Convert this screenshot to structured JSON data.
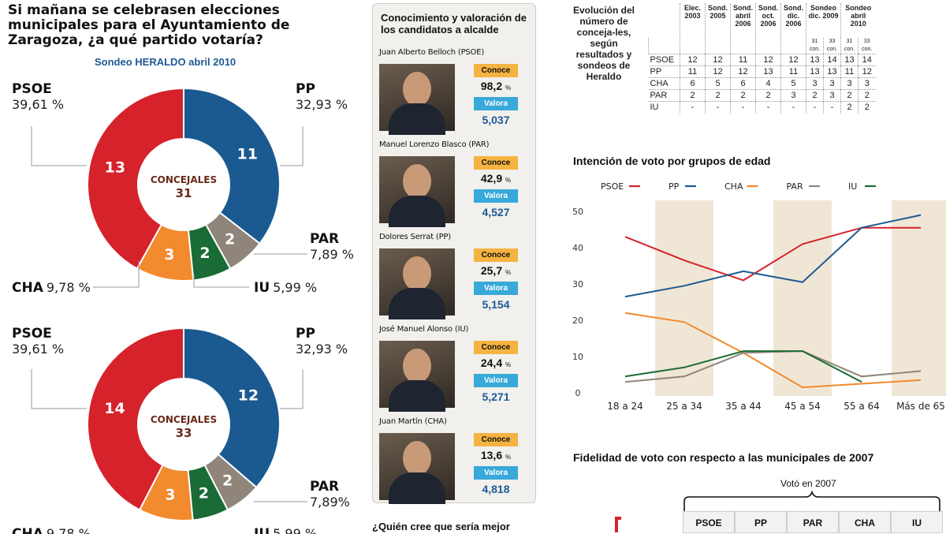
{
  "headline": "Si mañana se celebrasen elecciones municipales para el Ayuntamiento de Zaragoza, ¿a qué partido votaría?",
  "subtitle": "Sondeo HERALDO abril 2010",
  "colors": {
    "psoe": "#d6222b",
    "pp": "#1b5a91",
    "cha": "#f28a2e",
    "iu": "#1a6b35",
    "par": "#8f857a"
  },
  "chart_data": [
    {
      "type": "pie",
      "title": "",
      "center_label": "CONCEJALES",
      "total": "31",
      "slices": [
        {
          "party": "PSOE",
          "pct": "39,61 %",
          "seats": 13,
          "seats_label": "13"
        },
        {
          "party": "PP",
          "pct": "32,93 %",
          "seats": 11,
          "seats_label": "11"
        },
        {
          "party": "PAR",
          "pct": "7,89 %",
          "seats": 2,
          "seats_label": "2"
        },
        {
          "party": "IU",
          "pct": "5,99 %",
          "seats": 2,
          "seats_label": "2"
        },
        {
          "party": "CHA",
          "pct": "9,78 %",
          "seats": 3,
          "seats_label": "3"
        }
      ]
    },
    {
      "type": "pie",
      "title": "",
      "center_label": "CONCEJALES",
      "total": "33",
      "slices": [
        {
          "party": "PSOE",
          "pct": "39,61 %",
          "seats": 14,
          "seats_label": "14"
        },
        {
          "party": "PP",
          "pct": "32,93 %",
          "seats": 12,
          "seats_label": "12"
        },
        {
          "party": "PAR",
          "pct": "7,89%",
          "seats": 2,
          "seats_label": "2"
        },
        {
          "party": "IU",
          "pct": "5,99 %",
          "seats": 2,
          "seats_label": "2"
        },
        {
          "party": "CHA",
          "pct": "9,78 %",
          "seats": 3,
          "seats_label": "3"
        }
      ]
    },
    {
      "type": "line",
      "title": "Intención de voto por grupos de edad",
      "categories": [
        "18 a 24",
        "25 a 34",
        "35 a 44",
        "45 a 54",
        "55 a 64",
        "Más de 65"
      ],
      "ylim": [
        0,
        50
      ],
      "yticks": [
        "0",
        "10",
        "20",
        "30",
        "40",
        "50"
      ],
      "legend_position": "top",
      "series": [
        {
          "name": "PSOE",
          "values": [
            43,
            36.5,
            31,
            41,
            45.5,
            45.5
          ]
        },
        {
          "name": "PP",
          "values": [
            26.5,
            29.5,
            33.5,
            30.5,
            45.5,
            49
          ]
        },
        {
          "name": "CHA",
          "values": [
            22,
            19.5,
            11,
            1.5,
            2.5,
            3.5
          ]
        },
        {
          "name": "PAR",
          "values": [
            3,
            4.5,
            11,
            11.5,
            4.5,
            6
          ]
        },
        {
          "name": "IU",
          "values": [
            4.5,
            7,
            11.5,
            11.5,
            3,
            null
          ]
        }
      ]
    }
  ],
  "candidates": {
    "title": "Conocimiento y valoración de los candidatos a alcalde",
    "conoce_label": "Conoce",
    "valora_label": "Valora",
    "pct_unit": "%",
    "items": [
      {
        "name": "Juan Alberto Belloch (PSOE)",
        "conoce": "98,2",
        "valora": "5,037"
      },
      {
        "name": "Manuel Lorenzo Blasco (PAR)",
        "conoce": "42,9",
        "valora": "4,527"
      },
      {
        "name": "Dolores Serrat (PP)",
        "conoce": "25,7",
        "valora": "5,154"
      },
      {
        "name": "José Manuel Alonso (IU)",
        "conoce": "24,4",
        "valora": "5,271"
      },
      {
        "name": "Juan Martín (CHA)",
        "conoce": "13,6",
        "valora": "4,818"
      }
    ],
    "footer": "¿Quién cree que sería mejor"
  },
  "evolution": {
    "caption": "Evolución del número de conceja-les, según resultados y sondeos de Heraldo",
    "headers": [
      "Elec. 2003",
      "Sond. 2005",
      "Sond. abril 2006",
      "Sond. oct. 2006",
      "Sond. dic. 2006",
      "Sondeo dic. 2009",
      "Sondeo abril 2010"
    ],
    "subheaders": [
      "31 con.",
      "33 con.",
      "31 con.",
      "33 con."
    ],
    "rows": [
      {
        "party": "PSOE",
        "values": [
          "12",
          "12",
          "11",
          "12",
          "12",
          "13",
          "14",
          "13",
          "14"
        ]
      },
      {
        "party": "PP",
        "values": [
          "11",
          "12",
          "12",
          "13",
          "11",
          "13",
          "13",
          "11",
          "12"
        ]
      },
      {
        "party": "CHA",
        "values": [
          "6",
          "5",
          "6",
          "4",
          "5",
          "3",
          "3",
          "3",
          "3"
        ]
      },
      {
        "party": "PAR",
        "values": [
          "2",
          "2",
          "2",
          "2",
          "3",
          "2",
          "3",
          "2",
          "2"
        ]
      },
      {
        "party": "IU",
        "values": [
          "-",
          "-",
          "-",
          "-",
          "-",
          "-",
          "-",
          "2",
          "2"
        ]
      }
    ]
  },
  "fidelity": {
    "title": "Fidelidad de voto con respecto a las municipales de 2007",
    "subtitle": "Votó en 2007",
    "columns": [
      "PSOE",
      "PP",
      "PAR",
      "CHA",
      "IU"
    ]
  }
}
